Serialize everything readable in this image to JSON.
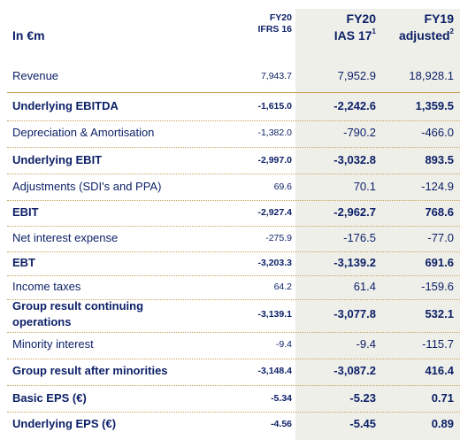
{
  "header": {
    "unit": "In €m",
    "col1": [
      "FY20",
      "IFRS 16"
    ],
    "col2": [
      "FY20",
      "IAS 17",
      "1"
    ],
    "col3": [
      "FY19",
      "adjusted",
      "2"
    ]
  },
  "rows": [
    {
      "label": "Revenue",
      "fy20_ifrs16": "7,943.7",
      "fy20_ias17": "7,952.9",
      "fy19_adjusted": "18,928.1",
      "bold": false
    },
    {
      "label": "Underlying EBITDA",
      "fy20_ifrs16": "-1,615.0",
      "fy20_ias17": "-2,242.6",
      "fy19_adjusted": "1,359.5",
      "bold": true
    },
    {
      "label": "Depreciation & Amortisation",
      "fy20_ifrs16": "-1,382.0",
      "fy20_ias17": "-790.2",
      "fy19_adjusted": "-466.0",
      "bold": false
    },
    {
      "label": "Underlying EBIT",
      "fy20_ifrs16": "-2,997.0",
      "fy20_ias17": "-3,032.8",
      "fy19_adjusted": "893.5",
      "bold": true
    },
    {
      "label": "Adjustments (SDI's and PPA)",
      "fy20_ifrs16": "69.6",
      "fy20_ias17": "70.1",
      "fy19_adjusted": "-124.9",
      "bold": false
    },
    {
      "label": "EBIT",
      "fy20_ifrs16": "-2,927.4",
      "fy20_ias17": "-2,962.7",
      "fy19_adjusted": "768.6",
      "bold": true
    },
    {
      "label": "Net interest expense",
      "fy20_ifrs16": "-275.9",
      "fy20_ias17": "-176.5",
      "fy19_adjusted": "-77.0",
      "bold": false
    },
    {
      "label": "EBT",
      "fy20_ifrs16": "-3,203.3",
      "fy20_ias17": "-3,139.2",
      "fy19_adjusted": "691.6",
      "bold": true
    },
    {
      "label": "Income taxes",
      "fy20_ifrs16": "64.2",
      "fy20_ias17": "61.4",
      "fy19_adjusted": "-159.6",
      "bold": false
    },
    {
      "label": [
        "Group result continuing",
        "operations"
      ],
      "fy20_ifrs16": "-3,139.1",
      "fy20_ias17": "-3,077.8",
      "fy19_adjusted": "532.1",
      "bold": true
    },
    {
      "label": "Minority interest",
      "fy20_ifrs16": "-9.4",
      "fy20_ias17": "-9.4",
      "fy19_adjusted": "-115.7",
      "bold": false
    },
    {
      "label": "Group result after minorities",
      "fy20_ifrs16": "-3,148.4",
      "fy20_ias17": "-3,087.2",
      "fy19_adjusted": "416.4",
      "bold": true
    },
    {
      "label": "Basic EPS (€)",
      "fy20_ifrs16": "-5.34",
      "fy20_ias17": "-5.23",
      "fy19_adjusted": "0.71",
      "bold": true
    },
    {
      "label": "Underlying EPS (€)",
      "fy20_ifrs16": "-4.56",
      "fy20_ias17": "-5.45",
      "fy19_adjusted": "0.89",
      "bold": true
    }
  ]
}
